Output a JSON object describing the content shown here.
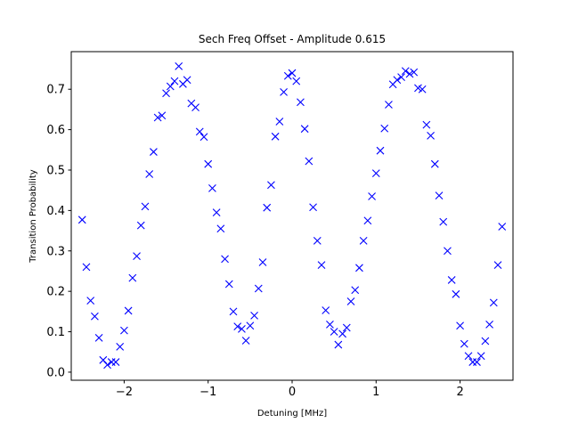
{
  "chart_data": {
    "type": "scatter",
    "title": "Sech Freq Offset - Amplitude 0.615",
    "xlabel": "Detuning [MHz]",
    "ylabel": "Transition Probability",
    "xlim": [
      -2.63,
      2.63
    ],
    "ylim": [
      -0.02,
      0.793
    ],
    "xticks": [
      -2,
      -1,
      0,
      1,
      2
    ],
    "xtick_labels": [
      "−2",
      "−1",
      "0",
      "1",
      "2"
    ],
    "yticks": [
      0.0,
      0.1,
      0.2,
      0.3,
      0.4,
      0.5,
      0.6,
      0.7
    ],
    "ytick_labels": [
      "0.0",
      "0.1",
      "0.2",
      "0.3",
      "0.4",
      "0.5",
      "0.6",
      "0.7"
    ],
    "grid": false,
    "marker": "x",
    "color": "#0000ff",
    "series": [
      {
        "x": [
          -2.5,
          -2.45,
          -2.4,
          -2.35,
          -2.3,
          -2.25,
          -2.2,
          -2.15,
          -2.1,
          -2.05,
          -2.0,
          -1.95,
          -1.9,
          -1.85,
          -1.8,
          -1.75,
          -1.7,
          -1.65,
          -1.6,
          -1.55,
          -1.5,
          -1.45,
          -1.4,
          -1.35,
          -1.3,
          -1.25,
          -1.2,
          -1.15,
          -1.1,
          -1.05,
          -1.0,
          -0.95,
          -0.9,
          -0.85,
          -0.8,
          -0.75,
          -0.7,
          -0.65,
          -0.6,
          -0.55,
          -0.5,
          -0.45,
          -0.4,
          -0.35,
          -0.3,
          -0.25,
          -0.2,
          -0.15,
          -0.1,
          -0.05,
          0.0,
          0.05,
          0.1,
          0.15,
          0.2,
          0.25,
          0.3,
          0.35,
          0.4,
          0.45,
          0.5,
          0.55,
          0.6,
          0.65,
          0.7,
          0.75,
          0.8,
          0.85,
          0.9,
          0.95,
          1.0,
          1.05,
          1.1,
          1.15,
          1.2,
          1.25,
          1.3,
          1.35,
          1.4,
          1.45,
          1.5,
          1.55,
          1.6,
          1.65,
          1.7,
          1.75,
          1.8,
          1.85,
          1.9,
          1.95,
          2.0,
          2.05,
          2.1,
          2.15,
          2.2,
          2.25,
          2.3,
          2.35,
          2.4,
          2.45,
          2.5
        ],
        "y": [
          0.377,
          0.26,
          0.177,
          0.138,
          0.085,
          0.03,
          0.018,
          0.025,
          0.025,
          0.063,
          0.103,
          0.152,
          0.233,
          0.287,
          0.363,
          0.41,
          0.49,
          0.545,
          0.63,
          0.635,
          0.69,
          0.707,
          0.72,
          0.757,
          0.713,
          0.723,
          0.665,
          0.655,
          0.595,
          0.582,
          0.515,
          0.455,
          0.395,
          0.355,
          0.28,
          0.218,
          0.15,
          0.113,
          0.107,
          0.078,
          0.115,
          0.14,
          0.207,
          0.272,
          0.407,
          0.463,
          0.583,
          0.62,
          0.693,
          0.733,
          0.74,
          0.72,
          0.668,
          0.602,
          0.522,
          0.408,
          0.325,
          0.265,
          0.153,
          0.118,
          0.1,
          0.068,
          0.095,
          0.11,
          0.175,
          0.203,
          0.258,
          0.325,
          0.375,
          0.435,
          0.492,
          0.548,
          0.603,
          0.662,
          0.712,
          0.723,
          0.73,
          0.745,
          0.738,
          0.742,
          0.703,
          0.7,
          0.612,
          0.585,
          0.515,
          0.437,
          0.372,
          0.3,
          0.228,
          0.193,
          0.115,
          0.07,
          0.04,
          0.025,
          0.025,
          0.04,
          0.077,
          0.118,
          0.172,
          0.265,
          0.36
        ]
      }
    ]
  }
}
